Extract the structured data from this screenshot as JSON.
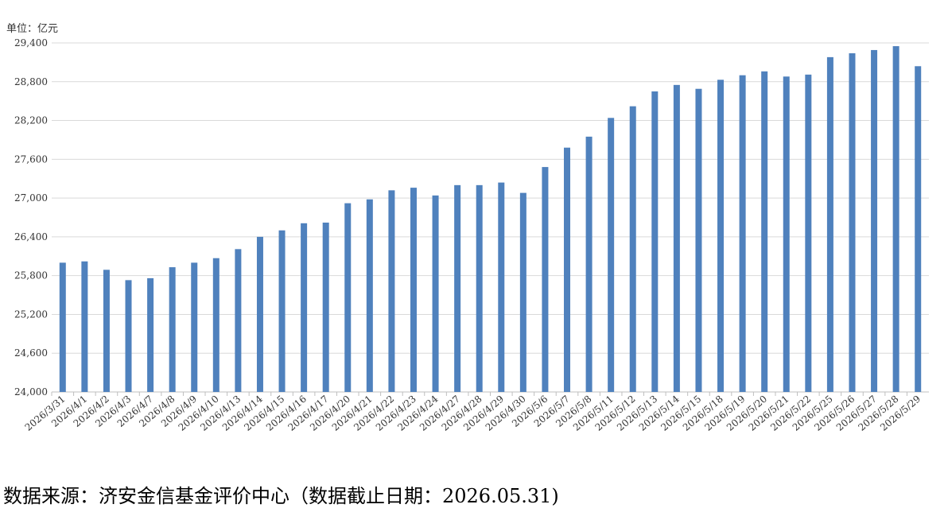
{
  "chart_data": {
    "type": "bar",
    "unit_label": "单位：亿元",
    "source": "数据来源：济安金信基金评价中心（数据截止日期：2026.05.31)",
    "categories": [
      "2026/3/31",
      "2026/4/1",
      "2026/4/2",
      "2026/4/3",
      "2026/4/7",
      "2026/4/8",
      "2026/4/9",
      "2026/4/10",
      "2026/4/13",
      "2026/4/14",
      "2026/4/15",
      "2026/4/16",
      "2026/4/17",
      "2026/4/20",
      "2026/4/21",
      "2026/4/22",
      "2026/4/23",
      "2026/4/24",
      "2026/4/27",
      "2026/4/28",
      "2026/4/29",
      "2026/4/30",
      "2026/5/6",
      "2026/5/7",
      "2026/5/8",
      "2026/5/11",
      "2026/5/12",
      "2026/5/13",
      "2026/5/14",
      "2026/5/15",
      "2026/5/18",
      "2026/5/19",
      "2026/5/20",
      "2026/5/21",
      "2026/5/22",
      "2026/5/25",
      "2026/5/26",
      "2026/5/27",
      "2026/5/28",
      "2026/5/29"
    ],
    "values": [
      26000,
      26020,
      25890,
      25730,
      25760,
      25930,
      26000,
      26070,
      26210,
      26400,
      26500,
      26610,
      26620,
      26920,
      26980,
      27120,
      27160,
      27040,
      27200,
      27200,
      27240,
      27080,
      27480,
      27780,
      27950,
      28240,
      28420,
      28650,
      28750,
      28690,
      28830,
      28900,
      28960,
      28880,
      28910,
      29180,
      29240,
      29290,
      29350,
      29040
    ],
    "color": "#4f81bd",
    "ylim": [
      24000,
      29400
    ],
    "yticks": [
      {
        "value": 24000,
        "label": "24,000"
      },
      {
        "value": 24600,
        "label": "24,600"
      },
      {
        "value": 25200,
        "label": "25,200"
      },
      {
        "value": 25800,
        "label": "25,800"
      },
      {
        "value": 26400,
        "label": "26,400"
      },
      {
        "value": 27000,
        "label": "27,000"
      },
      {
        "value": 27600,
        "label": "27,600"
      },
      {
        "value": 28200,
        "label": "28,200"
      },
      {
        "value": 28800,
        "label": "28,800"
      },
      {
        "value": 29400,
        "label": "29,400"
      }
    ],
    "grid": true
  }
}
